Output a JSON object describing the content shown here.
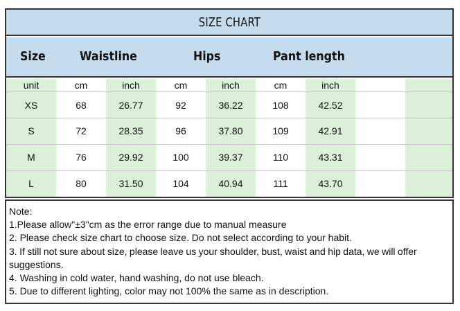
{
  "title": "SIZE CHART",
  "headers": {
    "size": "Size",
    "waistline": "Waistline",
    "hips": "Hips",
    "pant_length": "Pant length"
  },
  "unit_row": {
    "label": "unit",
    "cm1": "cm",
    "inch1": "inch",
    "cm2": "cm",
    "inch2": "inch",
    "cm3": "cm",
    "inch3": "inch"
  },
  "rows": [
    {
      "size": "XS",
      "waist_cm": "68",
      "waist_inch": "26.77",
      "hips_cm": "92",
      "hips_inch": "36.22",
      "len_cm": "108",
      "len_inch": "42.52"
    },
    {
      "size": "S",
      "waist_cm": "72",
      "waist_inch": "28.35",
      "hips_cm": "96",
      "hips_inch": "37.80",
      "len_cm": "109",
      "len_inch": "42.91"
    },
    {
      "size": "M",
      "waist_cm": "76",
      "waist_inch": "29.92",
      "hips_cm": "100",
      "hips_inch": "39.37",
      "len_cm": "110",
      "len_inch": "43.31"
    },
    {
      "size": "L",
      "waist_cm": "80",
      "waist_inch": "31.50",
      "hips_cm": "104",
      "hips_inch": "40.94",
      "len_cm": "111",
      "len_inch": "43.70"
    }
  ],
  "notes": {
    "heading": "Note:",
    "items": [
      "1.Please allow\"±3\"cm as the error range due to manual measure",
      "2. Please check size chart to choose size. Do not select according to your habit.",
      "3. If still not sure about size, please leave us your shoulder, bust, waist and hip data, we will offer suggestions.",
      "4. Washing in cold water, hand washing, do not use bleach.",
      "5. Due to different lighting, color may not 100% the same as in description."
    ]
  },
  "colors": {
    "header_blue": "#c5dcef",
    "column_green": "#dcefd8",
    "border": "#333333"
  }
}
